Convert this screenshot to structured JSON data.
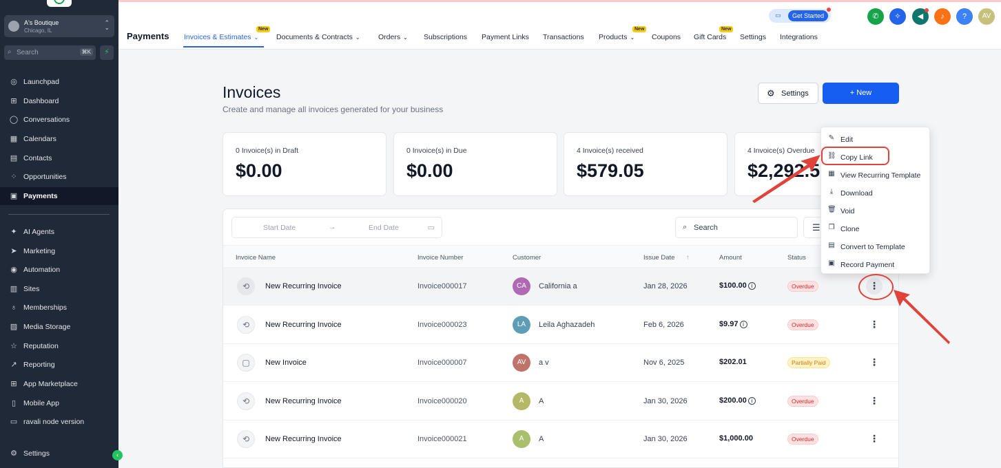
{
  "sidebar": {
    "account": {
      "name": "A's Boutique",
      "location": "Chicago, IL"
    },
    "search": {
      "placeholder": "Search",
      "shortcut": "⌘K"
    },
    "items": [
      {
        "label": "Launchpad",
        "icon": "rocket-icon",
        "glyph": "◎"
      },
      {
        "label": "Dashboard",
        "icon": "grid-icon",
        "glyph": "⊞"
      },
      {
        "label": "Conversations",
        "icon": "chat-icon",
        "glyph": "◯"
      },
      {
        "label": "Calendars",
        "icon": "calendar-icon",
        "glyph": "▦"
      },
      {
        "label": "Contacts",
        "icon": "contacts-icon",
        "glyph": "▤"
      },
      {
        "label": "Opportunities",
        "icon": "opportunities-icon",
        "glyph": "⁘"
      },
      {
        "label": "Payments",
        "icon": "receipt-icon",
        "glyph": "▣"
      },
      {
        "label": "AI Agents",
        "icon": "sparkle-icon",
        "glyph": "✦"
      },
      {
        "label": "Marketing",
        "icon": "send-icon",
        "glyph": "➤"
      },
      {
        "label": "Automation",
        "icon": "automation-icon",
        "glyph": "◉"
      },
      {
        "label": "Sites",
        "icon": "sites-icon",
        "glyph": "▥"
      },
      {
        "label": "Memberships",
        "icon": "membership-icon",
        "glyph": "♁"
      },
      {
        "label": "Media Storage",
        "icon": "image-icon",
        "glyph": "▨"
      },
      {
        "label": "Reputation",
        "icon": "star-icon",
        "glyph": "☆"
      },
      {
        "label": "Reporting",
        "icon": "chart-icon",
        "glyph": "↗"
      },
      {
        "label": "App Marketplace",
        "icon": "apps-icon",
        "glyph": "⊞"
      },
      {
        "label": "Mobile App",
        "icon": "phone-icon",
        "glyph": "▯"
      },
      {
        "label": "ravali node version",
        "icon": "building-icon",
        "glyph": "▭"
      },
      {
        "label": "Settings",
        "icon": "gear-icon",
        "glyph": "⚙"
      }
    ]
  },
  "topbar": {
    "page_label": "Payments",
    "tabs": [
      {
        "label": "Invoices & Estimates",
        "chevron": true,
        "badge": "New"
      },
      {
        "label": "Documents & Contracts",
        "chevron": true
      },
      {
        "label": "Orders",
        "chevron": true
      },
      {
        "label": "Subscriptions"
      },
      {
        "label": "Payment Links"
      },
      {
        "label": "Transactions"
      },
      {
        "label": "Products",
        "chevron": true,
        "badge": "New"
      },
      {
        "label": "Coupons"
      },
      {
        "label": "Gift Cards",
        "badge": "New"
      },
      {
        "label": "Settings"
      },
      {
        "label": "Integrations"
      }
    ],
    "get_started": "Get Started",
    "user_initials": "AV",
    "help_label": "?"
  },
  "page": {
    "title": "Invoices",
    "subtitle": "Create and manage all invoices generated for your business",
    "settings_label": "Settings",
    "new_label": "+ New"
  },
  "stats": [
    {
      "label": "0 Invoice(s) in Draft",
      "value": "$0.00"
    },
    {
      "label": "0 Invoice(s) in Due",
      "value": "$0.00"
    },
    {
      "label": "4 Invoice(s) received",
      "value": "$579.05"
    },
    {
      "label": "4 Invoice(s) Overdue",
      "value": "$2,292.5"
    }
  ],
  "filters": {
    "start_date": "Start Date",
    "end_date": "End Date",
    "search": "Search"
  },
  "table": {
    "columns": [
      "Invoice Name",
      "Invoice Number",
      "Customer",
      "Issue Date",
      "Amount",
      "Status"
    ],
    "rows": [
      {
        "name": "New Recurring Invoice",
        "number": "Invoice000017",
        "initials": "CA",
        "avatar_color": "#b06ab3",
        "customer": "California a",
        "date": "Jan 28, 2026",
        "amount": "$100.00",
        "info": true,
        "status": "Overdue",
        "status_type": "overdue",
        "recurring": true
      },
      {
        "name": "New Recurring Invoice",
        "number": "Invoice000023",
        "initials": "LA",
        "avatar_color": "#5e9db5",
        "customer": "Leila Aghazadeh",
        "date": "Feb 6, 2026",
        "amount": "$9.97",
        "info": true,
        "status": "Overdue",
        "status_type": "overdue",
        "recurring": true
      },
      {
        "name": "New Invoice",
        "number": "Invoice000007",
        "initials": "AV",
        "avatar_color": "#c0736b",
        "customer": "a v",
        "date": "Nov 6, 2025",
        "amount": "$202.01",
        "info": false,
        "status": "Partially Paid",
        "status_type": "partial",
        "recurring": false
      },
      {
        "name": "New Recurring Invoice",
        "number": "Invoice000020",
        "initials": "A",
        "avatar_color": "#b5b866",
        "customer": "A",
        "date": "Jan 30, 2026",
        "amount": "$200.00",
        "info": true,
        "status": "Overdue",
        "status_type": "overdue",
        "recurring": true
      },
      {
        "name": "New Recurring Invoice",
        "number": "Invoice000021",
        "initials": "A",
        "avatar_color": "#a9bf6b",
        "customer": "A",
        "date": "Jan 30, 2026",
        "amount": "$1,000.00",
        "info": false,
        "status": "Overdue",
        "status_type": "overdue",
        "recurring": true
      }
    ]
  },
  "menu": {
    "items": [
      {
        "label": "Edit",
        "icon": "pencil-icon",
        "glyph": "✎"
      },
      {
        "label": "Copy Link",
        "icon": "link-icon",
        "glyph": "⛓"
      },
      {
        "label": "View Recurring Template",
        "icon": "calendar-icon",
        "glyph": "▦"
      },
      {
        "label": "Download",
        "icon": "download-icon",
        "glyph": "⤓"
      },
      {
        "label": "Void",
        "icon": "trash-icon",
        "glyph": "🗑"
      },
      {
        "label": "Clone",
        "icon": "copy-icon",
        "glyph": "❐"
      },
      {
        "label": "Convert to Template",
        "icon": "template-icon",
        "glyph": "▤"
      },
      {
        "label": "Record Payment",
        "icon": "payment-icon",
        "glyph": "▣"
      }
    ]
  },
  "colors": {
    "accent": "#155eef",
    "annotation": "#e0433a",
    "sidebar": "#1f2937"
  }
}
